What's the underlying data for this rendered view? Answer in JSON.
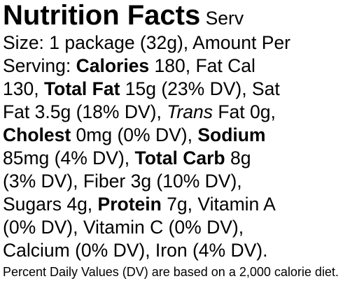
{
  "label": {
    "title": "Nutrition Facts",
    "lines": [
      [
        " Serv"
      ],
      [
        "Size: 1 package (32g), Amount Per"
      ],
      [
        "Serving: ",
        "Calories",
        " 180, Fat Cal"
      ],
      [
        "130, ",
        "Total Fat",
        " 15g (23% DV), Sat"
      ],
      [
        "Fat 3.5g (18% DV), ",
        "Trans",
        " Fat 0g,"
      ],
      [
        "Cholest",
        " 0mg (0% DV), ",
        "Sodium"
      ],
      [
        "85mg (4% DV), ",
        "Total Carb",
        " 8g"
      ],
      [
        "(3% DV), Fiber 3g (10% DV),"
      ],
      [
        "Sugars 4g, ",
        "Protein",
        " 7g, Vitamin A"
      ],
      [
        "(0% DV), Vitamin C (0% DV),"
      ],
      [
        "Calcium (0% DV), Iron (4% DV)."
      ]
    ],
    "footnote": "Percent Daily Values (DV) are based on a 2,000 calorie diet."
  }
}
